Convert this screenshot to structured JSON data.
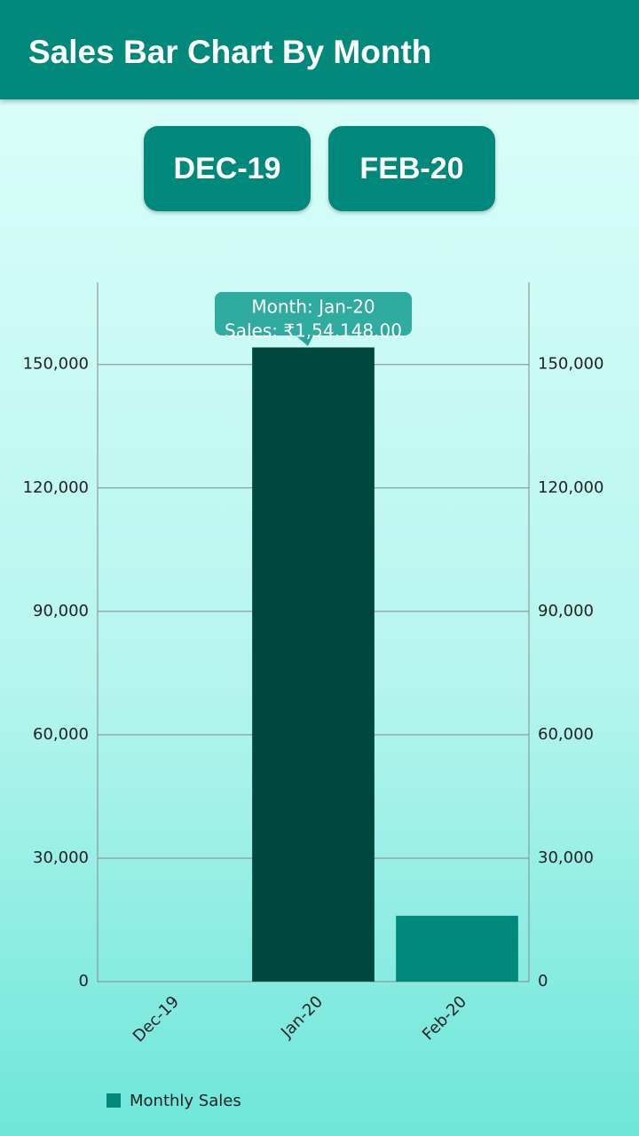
{
  "app_bar": {
    "title": "Sales Bar Chart By Month"
  },
  "buttons": [
    "DEC-19",
    "FEB-20"
  ],
  "chart_data": {
    "type": "bar",
    "categories": [
      "Dec-19",
      "Jan-20",
      "Feb-20"
    ],
    "series": [
      {
        "name": "Monthly Sales",
        "color": "#00897b",
        "values": [
          0,
          154148,
          16000
        ]
      }
    ],
    "highlight_index": 1,
    "highlight_color": "#00473d",
    "tooltip": [
      "Month: Jan-20",
      "Sales: ₹1,54,148.00"
    ],
    "ylim": [
      0,
      170000
    ],
    "yticks": [
      0,
      {
        "value": 30000,
        "label": "30,000"
      },
      {
        "value": 60000,
        "label": "60,000"
      },
      {
        "value": 90000,
        "label": "90,000"
      },
      {
        "value": 120000,
        "label": "120,000"
      },
      {
        "value": 150000,
        "label": "150,000"
      }
    ],
    "y2lim": [
      0,
      170000
    ],
    "y2ticks": [
      0,
      {
        "value": 30000,
        "label": "30,000"
      },
      {
        "value": 60000,
        "label": "60,000"
      },
      {
        "value": 90000,
        "label": "90,000"
      },
      {
        "value": 120000,
        "label": "120,000"
      },
      {
        "value": 150000,
        "label": "150,000"
      }
    ],
    "grid": true,
    "legend": "bottom-left"
  }
}
